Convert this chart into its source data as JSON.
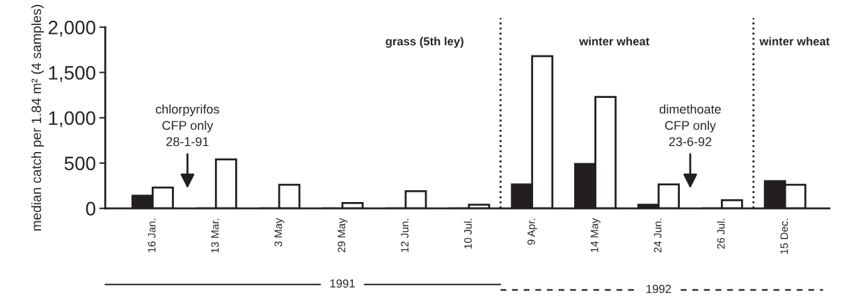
{
  "chart_data": {
    "type": "bar",
    "ylabel": "median catch per 1.84 m² (4 samples)",
    "categories": [
      "16 Jan.",
      "13 Mar.",
      "3 May",
      "29 May",
      "12 Jun.",
      "10 Jul.",
      "9 Apr.",
      "14 May",
      "24 Jun.",
      "26 Jul.",
      "15 Dec."
    ],
    "series": [
      {
        "color": "#231f20",
        "values": [
          140,
          0,
          0,
          0,
          0,
          0,
          265,
          490,
          40,
          0,
          300
        ]
      },
      {
        "color": "#ffffff",
        "values": [
          230,
          540,
          260,
          60,
          190,
          40,
          1680,
          1230,
          265,
          90,
          260
        ]
      }
    ],
    "ylim": [
      0,
      2000
    ],
    "yticks": [
      0,
      {
        "value": 500,
        "label": "500"
      },
      {
        "value": 1000,
        "label": "1,000"
      },
      {
        "value": 1500,
        "label": "1,500"
      },
      {
        "value": 2000,
        "label": "2,000"
      }
    ],
    "annotations": [
      "grass (5th ley)",
      "winter wheat",
      "winter wheat",
      "chlorpyrifos\nCFP only\n28-1-91",
      "dimethoate\nCFP only\n23-6-92",
      "1991",
      "1992"
    ],
    "grid": false,
    "legend": false
  }
}
